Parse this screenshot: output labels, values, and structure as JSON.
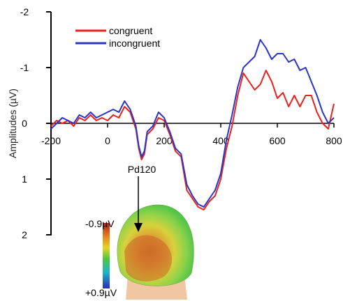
{
  "chart_data": {
    "type": "line",
    "title": "",
    "xlabel": "",
    "ylabel": "Amplitudes (µV)",
    "xlim": [
      -200,
      800
    ],
    "ylim": [
      2,
      -2
    ],
    "y_inverted": true,
    "x_ticks": [
      "-200",
      "0",
      "200",
      "400",
      "600",
      "800"
    ],
    "x_tick_values": [
      -200,
      0,
      200,
      400,
      600,
      800
    ],
    "y_ticks": [
      "-2",
      "-1",
      "0",
      "1",
      "2"
    ],
    "y_tick_values": [
      -2,
      -1,
      0,
      1,
      2
    ],
    "grid": false,
    "legend_position": "top-left",
    "series": [
      {
        "name": "congruent",
        "color": "#e8231e",
        "x": [
          -200,
          -180,
          -160,
          -140,
          -120,
          -100,
          -80,
          -60,
          -40,
          -20,
          0,
          20,
          40,
          60,
          80,
          100,
          110,
          120,
          130,
          140,
          160,
          180,
          200,
          220,
          240,
          260,
          280,
          300,
          320,
          340,
          360,
          380,
          400,
          420,
          440,
          460,
          480,
          500,
          520,
          540,
          560,
          580,
          600,
          620,
          640,
          660,
          680,
          700,
          720,
          740,
          760,
          780,
          800
        ],
        "y": [
          0.05,
          -0.05,
          0.0,
          -0.05,
          0.05,
          -0.1,
          -0.05,
          -0.15,
          -0.05,
          -0.1,
          -0.05,
          -0.15,
          -0.1,
          -0.3,
          -0.2,
          0.1,
          0.45,
          0.65,
          0.55,
          0.2,
          0.1,
          -0.1,
          -0.05,
          0.2,
          0.5,
          0.6,
          1.2,
          1.35,
          1.5,
          1.55,
          1.4,
          1.3,
          1.0,
          0.45,
          0.05,
          -0.5,
          -0.9,
          -0.75,
          -0.6,
          -0.7,
          -0.95,
          -0.75,
          -0.45,
          -0.55,
          -0.3,
          -0.5,
          -0.3,
          -0.5,
          -0.5,
          -0.2,
          0.0,
          0.1,
          -0.35
        ]
      },
      {
        "name": "incongruent",
        "color": "#2a35c8",
        "x": [
          -200,
          -180,
          -160,
          -140,
          -120,
          -100,
          -80,
          -60,
          -40,
          -20,
          0,
          20,
          40,
          60,
          80,
          100,
          110,
          120,
          130,
          140,
          160,
          180,
          200,
          220,
          240,
          260,
          280,
          300,
          320,
          340,
          360,
          380,
          400,
          420,
          440,
          460,
          480,
          500,
          520,
          540,
          560,
          580,
          600,
          620,
          640,
          660,
          680,
          700,
          720,
          740,
          760,
          780,
          800
        ],
        "y": [
          0.1,
          0.0,
          -0.1,
          -0.05,
          0.0,
          -0.15,
          -0.1,
          -0.2,
          -0.1,
          -0.15,
          -0.2,
          -0.25,
          -0.2,
          -0.4,
          -0.25,
          0.05,
          0.4,
          0.6,
          0.5,
          0.15,
          0.05,
          -0.2,
          -0.1,
          0.15,
          0.45,
          0.55,
          1.1,
          1.3,
          1.45,
          1.5,
          1.35,
          1.2,
          0.9,
          0.3,
          -0.15,
          -0.65,
          -1.0,
          -1.1,
          -1.2,
          -1.5,
          -1.35,
          -1.15,
          -1.25,
          -1.25,
          -1.1,
          -1.15,
          -0.95,
          -1.0,
          -0.75,
          -0.5,
          -0.2,
          0.0,
          -0.1
        ]
      }
    ],
    "annotations": [
      {
        "text": "Pd120",
        "x": 120
      }
    ],
    "inset": {
      "type": "scalp-topography",
      "colorbar_top_label": "-0.9µV",
      "colorbar_bottom_label": "+0.9µV"
    }
  }
}
